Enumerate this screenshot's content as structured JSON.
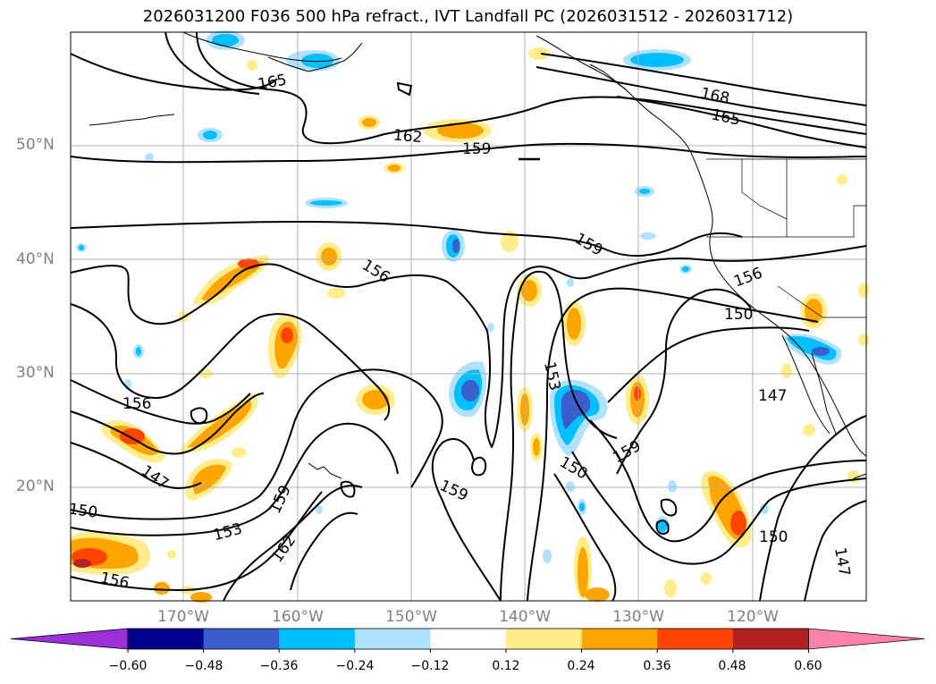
{
  "title": "2026031200 F036 500 hPa refract., IVT Landfall PC (2026031512 - 2026031712)",
  "map": {
    "lat_labels": [
      "50°N",
      "40°N",
      "30°N",
      "20°N"
    ],
    "lon_labels": [
      "170°W",
      "160°W",
      "150°W",
      "140°W",
      "130°W",
      "120°W"
    ],
    "contour_labels": [
      "165",
      "162",
      "159",
      "168",
      "165",
      "159",
      "156",
      "156",
      "150",
      "153",
      "147",
      "156",
      "147",
      "150",
      "153",
      "159",
      "162",
      "159",
      "150",
      "159",
      "150",
      "147",
      "156"
    ]
  },
  "colorbar": {
    "ticks": [
      "−0.60",
      "−0.48",
      "−0.36",
      "−0.24",
      "−0.12",
      "0.12",
      "0.24",
      "0.36",
      "0.48",
      "0.60"
    ],
    "colors": [
      "#9b30d9",
      "#00008b",
      "#3a5fcd",
      "#00bfff",
      "#b0e2ff",
      "#ffffff",
      "#ffec8b",
      "#ffa500",
      "#ff4500",
      "#b22222",
      "#ff82ab"
    ]
  },
  "colors": {
    "positive_light": "#ffec8b",
    "positive_mid": "#ffa500",
    "positive_strong": "#ff4500",
    "positive_max": "#b22222",
    "negative_light": "#b0e2ff",
    "negative_mid": "#00bfff",
    "negative_strong": "#3a5fcd"
  }
}
